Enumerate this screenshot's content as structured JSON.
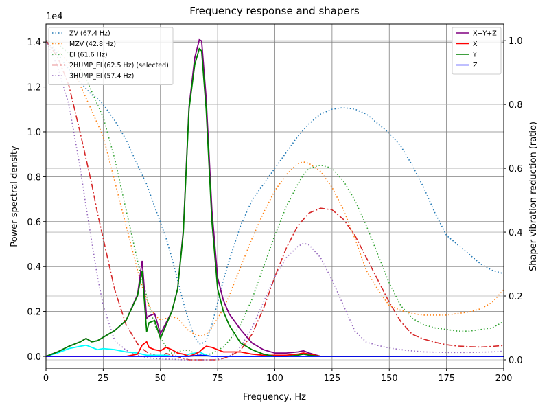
{
  "chart_data": {
    "type": "line",
    "title": "Frequency response and shapers",
    "xlabel": "Frequency, Hz",
    "ylabel": "Power spectral density",
    "y2label": "Shaper vibration reduction (ratio)",
    "y_offset_label": "1e4",
    "grid": true,
    "legend_loc": "upper right",
    "legend2_loc": "upper left",
    "xlim": [
      0,
      200
    ],
    "xticks": [
      0,
      25,
      50,
      75,
      100,
      125,
      150,
      175,
      200
    ],
    "ylim": [
      -550,
      14800
    ],
    "yticks": [
      {
        "value": 0,
        "label": "0.0"
      },
      {
        "value": 2000,
        "label": "0.2"
      },
      {
        "value": 4000,
        "label": "0.4"
      },
      {
        "value": 6000,
        "label": "0.6"
      },
      {
        "value": 8000,
        "label": "0.8"
      },
      {
        "value": 10000,
        "label": "1.0"
      },
      {
        "value": 12000,
        "label": "1.2"
      },
      {
        "value": 14000,
        "label": "1.4"
      }
    ],
    "y2lim": [
      -0.028,
      1.052
    ],
    "y2ticks": [
      {
        "value": 0,
        "label": "0.0"
      },
      {
        "value": 0.2,
        "label": "0.2"
      },
      {
        "value": 0.4,
        "label": "0.4"
      },
      {
        "value": 0.6,
        "label": "0.6"
      },
      {
        "value": 0.8,
        "label": "0.8"
      },
      {
        "value": 1.0,
        "label": "1.0"
      }
    ],
    "x": [
      0,
      5,
      10,
      15,
      17.5,
      20,
      22.5,
      25,
      30,
      35,
      40,
      42,
      44,
      45,
      47.5,
      50,
      52.5,
      55,
      57.5,
      60,
      62.5,
      65,
      67,
      68,
      70,
      72.5,
      75,
      77.5,
      80,
      85,
      90,
      95,
      100,
      105,
      110,
      112.5,
      115,
      120,
      125,
      130,
      135,
      140,
      145,
      150,
      155,
      160,
      165,
      170,
      175,
      180,
      185,
      190,
      195,
      200
    ],
    "series": [
      {
        "name": "ZV (67.4 Hz)",
        "color": "#1f77b4",
        "linestyle": "dotted",
        "axis": "y2",
        "values": [
          1.0,
          0.96,
          0.91,
          0.87,
          0.85,
          0.83,
          0.82,
          0.8,
          0.75,
          0.69,
          0.61,
          0.58,
          0.55,
          0.53,
          0.48,
          0.43,
          0.38,
          0.32,
          0.25,
          0.18,
          0.12,
          0.07,
          0.05,
          0.05,
          0.06,
          0.11,
          0.18,
          0.25,
          0.31,
          0.42,
          0.5,
          0.55,
          0.6,
          0.65,
          0.7,
          0.72,
          0.74,
          0.77,
          0.785,
          0.79,
          0.785,
          0.77,
          0.74,
          0.71,
          0.67,
          0.61,
          0.54,
          0.46,
          0.39,
          0.36,
          0.33,
          0.3,
          0.28,
          0.27
        ]
      },
      {
        "name": "MZV (42.8 Hz)",
        "color": "#ff7f0e",
        "linestyle": "dotted",
        "axis": "y2",
        "values": [
          1.0,
          0.97,
          0.93,
          0.86,
          0.82,
          0.78,
          0.74,
          0.7,
          0.56,
          0.42,
          0.28,
          0.23,
          0.19,
          0.17,
          0.14,
          0.125,
          0.13,
          0.135,
          0.13,
          0.11,
          0.09,
          0.08,
          0.075,
          0.075,
          0.08,
          0.1,
          0.13,
          0.16,
          0.2,
          0.29,
          0.38,
          0.46,
          0.53,
          0.58,
          0.615,
          0.62,
          0.615,
          0.59,
          0.54,
          0.47,
          0.38,
          0.28,
          0.22,
          0.17,
          0.155,
          0.145,
          0.14,
          0.14,
          0.14,
          0.145,
          0.15,
          0.16,
          0.18,
          0.22
        ]
      },
      {
        "name": "EI (61.6 Hz)",
        "color": "#2ca02c",
        "linestyle": "dotted",
        "axis": "y2",
        "values": [
          1.0,
          0.99,
          0.96,
          0.91,
          0.88,
          0.84,
          0.8,
          0.76,
          0.63,
          0.47,
          0.31,
          0.25,
          0.2,
          0.17,
          0.11,
          0.07,
          0.04,
          0.02,
          0.025,
          0.03,
          0.03,
          0.02,
          0.015,
          0.015,
          0.015,
          0.02,
          0.03,
          0.04,
          0.06,
          0.11,
          0.19,
          0.29,
          0.39,
          0.48,
          0.55,
          0.58,
          0.6,
          0.61,
          0.6,
          0.56,
          0.5,
          0.42,
          0.33,
          0.24,
          0.17,
          0.13,
          0.11,
          0.1,
          0.095,
          0.09,
          0.09,
          0.095,
          0.1,
          0.12
        ]
      },
      {
        "name": "2HUMP_EI (62.5 Hz) (selected)",
        "color": "#d62728",
        "linestyle": "dashdot",
        "axis": "y2",
        "values": [
          1.0,
          0.95,
          0.86,
          0.71,
          0.63,
          0.55,
          0.46,
          0.38,
          0.22,
          0.11,
          0.05,
          0.035,
          0.025,
          0.02,
          0.015,
          0.01,
          0.02,
          0.015,
          0.01,
          0.005,
          0.0,
          0.0,
          0.0,
          0.0,
          0.0,
          0.0,
          0.0,
          0.005,
          0.01,
          0.03,
          0.08,
          0.16,
          0.26,
          0.35,
          0.42,
          0.44,
          0.46,
          0.475,
          0.47,
          0.44,
          0.39,
          0.32,
          0.25,
          0.18,
          0.12,
          0.08,
          0.065,
          0.055,
          0.047,
          0.043,
          0.041,
          0.04,
          0.042,
          0.045
        ]
      },
      {
        "name": "3HUMP_EI (57.4 Hz)",
        "color": "#9467bd",
        "linestyle": "dotted",
        "axis": "y2",
        "values": [
          1.0,
          0.92,
          0.8,
          0.6,
          0.48,
          0.37,
          0.26,
          0.17,
          0.06,
          0.03,
          0.015,
          0.01,
          0.008,
          0.006,
          0.004,
          0.003,
          0.002,
          0.002,
          0.001,
          0.0,
          0.0,
          0.0,
          0.0,
          0.0,
          0.0,
          0.0,
          0.002,
          0.005,
          0.01,
          0.04,
          0.1,
          0.18,
          0.26,
          0.32,
          0.355,
          0.365,
          0.36,
          0.32,
          0.25,
          0.17,
          0.09,
          0.055,
          0.045,
          0.037,
          0.032,
          0.028,
          0.025,
          0.024,
          0.023,
          0.023,
          0.023,
          0.024,
          0.025,
          0.027
        ]
      },
      {
        "color": "cyan",
        "linestyle": "solid",
        "values": [
          0,
          150,
          350,
          450,
          500,
          400,
          300,
          350,
          300,
          200,
          150,
          100,
          50,
          50,
          50,
          50,
          50,
          0,
          0,
          0,
          100,
          150,
          200,
          150,
          50,
          0,
          0,
          0,
          0,
          0,
          0,
          0,
          0,
          0,
          0,
          0,
          0,
          0,
          0,
          0,
          0,
          0,
          0,
          0,
          0,
          0,
          0,
          0,
          0,
          0,
          0,
          0,
          0,
          0
        ]
      },
      {
        "name": "X+Y+Z",
        "color": "purple",
        "linestyle": "solid",
        "values": [
          0,
          200,
          450,
          650,
          800,
          650,
          700,
          850,
          1150,
          1600,
          2750,
          4250,
          1700,
          1800,
          1900,
          1000,
          1500,
          2000,
          3000,
          5600,
          11100,
          13300,
          14100,
          14050,
          11500,
          6500,
          3500,
          2500,
          1900,
          1200,
          600,
          300,
          150,
          150,
          200,
          250,
          150,
          0,
          0,
          0,
          0,
          0,
          0,
          0,
          0,
          0,
          0,
          0,
          0,
          0,
          0,
          0,
          0,
          0
        ]
      },
      {
        "name": "X",
        "color": "red",
        "linestyle": "solid",
        "values": [
          0,
          0,
          0,
          0,
          0,
          0,
          0,
          0,
          0,
          0,
          100,
          500,
          650,
          400,
          300,
          250,
          400,
          300,
          150,
          100,
          0,
          100,
          200,
          300,
          450,
          400,
          300,
          200,
          200,
          200,
          100,
          50,
          50,
          50,
          100,
          150,
          100,
          0,
          0,
          0,
          0,
          0,
          0,
          0,
          0,
          0,
          0,
          0,
          0,
          0,
          0,
          0,
          0,
          0
        ]
      },
      {
        "name": "Y",
        "color": "green",
        "linestyle": "solid",
        "values": [
          0,
          200,
          450,
          650,
          800,
          650,
          700,
          850,
          1150,
          1600,
          2700,
          3800,
          1100,
          1500,
          1600,
          800,
          1400,
          2000,
          3000,
          5500,
          11000,
          13000,
          13700,
          13600,
          11000,
          6000,
          3000,
          2000,
          1400,
          600,
          300,
          100,
          0,
          0,
          50,
          100,
          50,
          0,
          0,
          0,
          0,
          0,
          0,
          0,
          0,
          0,
          0,
          0,
          0,
          0,
          0,
          0,
          0,
          0
        ]
      },
      {
        "name": "Z",
        "color": "blue",
        "linestyle": "solid",
        "values": [
          0,
          0,
          0,
          0,
          0,
          0,
          0,
          0,
          0,
          0,
          0,
          0,
          0,
          0,
          0,
          0,
          0,
          0,
          0,
          0,
          0,
          30,
          50,
          50,
          30,
          0,
          0,
          0,
          0,
          0,
          0,
          0,
          0,
          0,
          0,
          0,
          0,
          0,
          0,
          0,
          0,
          0,
          0,
          0,
          0,
          0,
          0,
          0,
          0,
          0,
          0,
          0,
          0,
          0
        ]
      }
    ]
  }
}
